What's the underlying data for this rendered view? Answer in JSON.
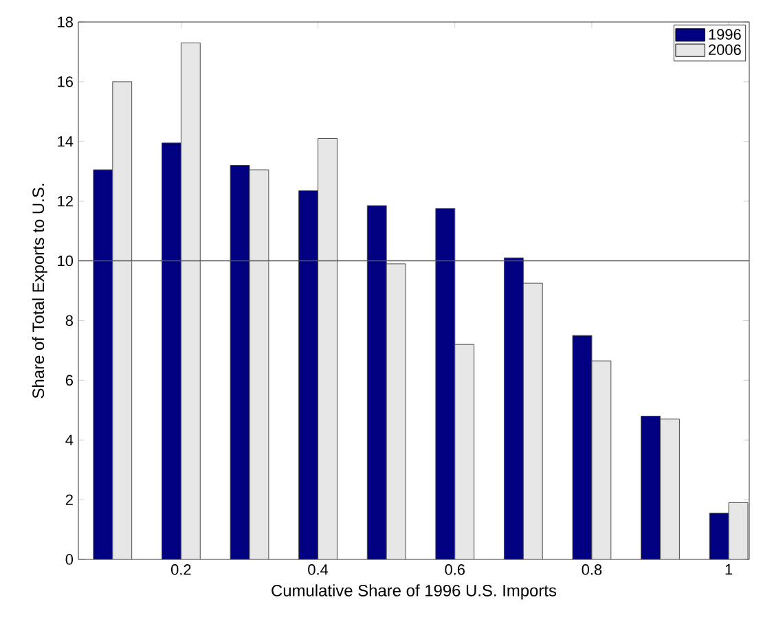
{
  "chart_data": {
    "type": "bar",
    "xlabel": "Cumulative Share of 1996 U.S. Imports",
    "ylabel": "Share of Total Exports to U.S.",
    "x": [
      0.1,
      0.2,
      0.3,
      0.4,
      0.5,
      0.6,
      0.7,
      0.8,
      0.9,
      1.0
    ],
    "series": [
      {
        "name": "1996",
        "color": "#000080",
        "values": [
          13.05,
          13.95,
          13.2,
          12.35,
          11.85,
          11.75,
          10.1,
          7.5,
          4.8,
          1.55
        ]
      },
      {
        "name": "2006",
        "color": "#e6e6e6",
        "values": [
          16.0,
          17.3,
          13.05,
          14.1,
          9.9,
          7.2,
          9.25,
          6.65,
          4.7,
          1.9
        ]
      }
    ],
    "xlim": [
      0.05,
      1.03
    ],
    "xticks": [
      0.2,
      0.4,
      0.6,
      0.8,
      1
    ],
    "ylim": [
      0,
      18
    ],
    "yticks": [
      0,
      2,
      4,
      6,
      8,
      10,
      12,
      14,
      16,
      18
    ],
    "ref_lines": [
      {
        "axis": "y",
        "value": 10,
        "color": "#555555"
      }
    ],
    "legend": "top right"
  }
}
